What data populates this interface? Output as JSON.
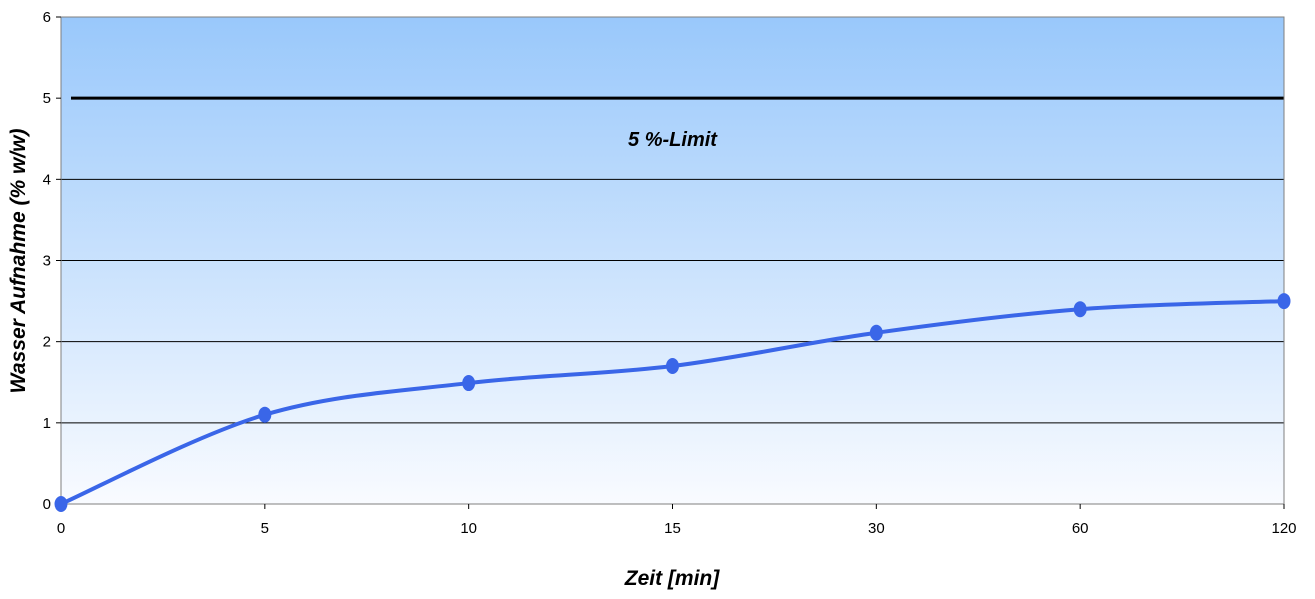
{
  "chart_data": {
    "type": "line",
    "categories": [
      "0",
      "5",
      "10",
      "15",
      "30",
      "60",
      "120"
    ],
    "values": [
      0,
      1.1,
      1.49,
      1.7,
      2.11,
      2.4,
      2.5
    ],
    "xlabel": "Zeit [min]",
    "ylabel": "Wasser Aufnahme (% w/w)",
    "ylim": [
      0,
      6
    ],
    "yticks": [
      "0",
      "1",
      "2",
      "3",
      "4",
      "5",
      "6"
    ],
    "limit_line": {
      "value": 5,
      "label": "5 %-Limit"
    },
    "grid": true,
    "legend": "none",
    "colors": {
      "series": "#3a66e8",
      "limit_line": "#000000",
      "background_top": "#99c8fb",
      "background_bottom": "#f9fbff",
      "gridline": "#000000"
    }
  }
}
